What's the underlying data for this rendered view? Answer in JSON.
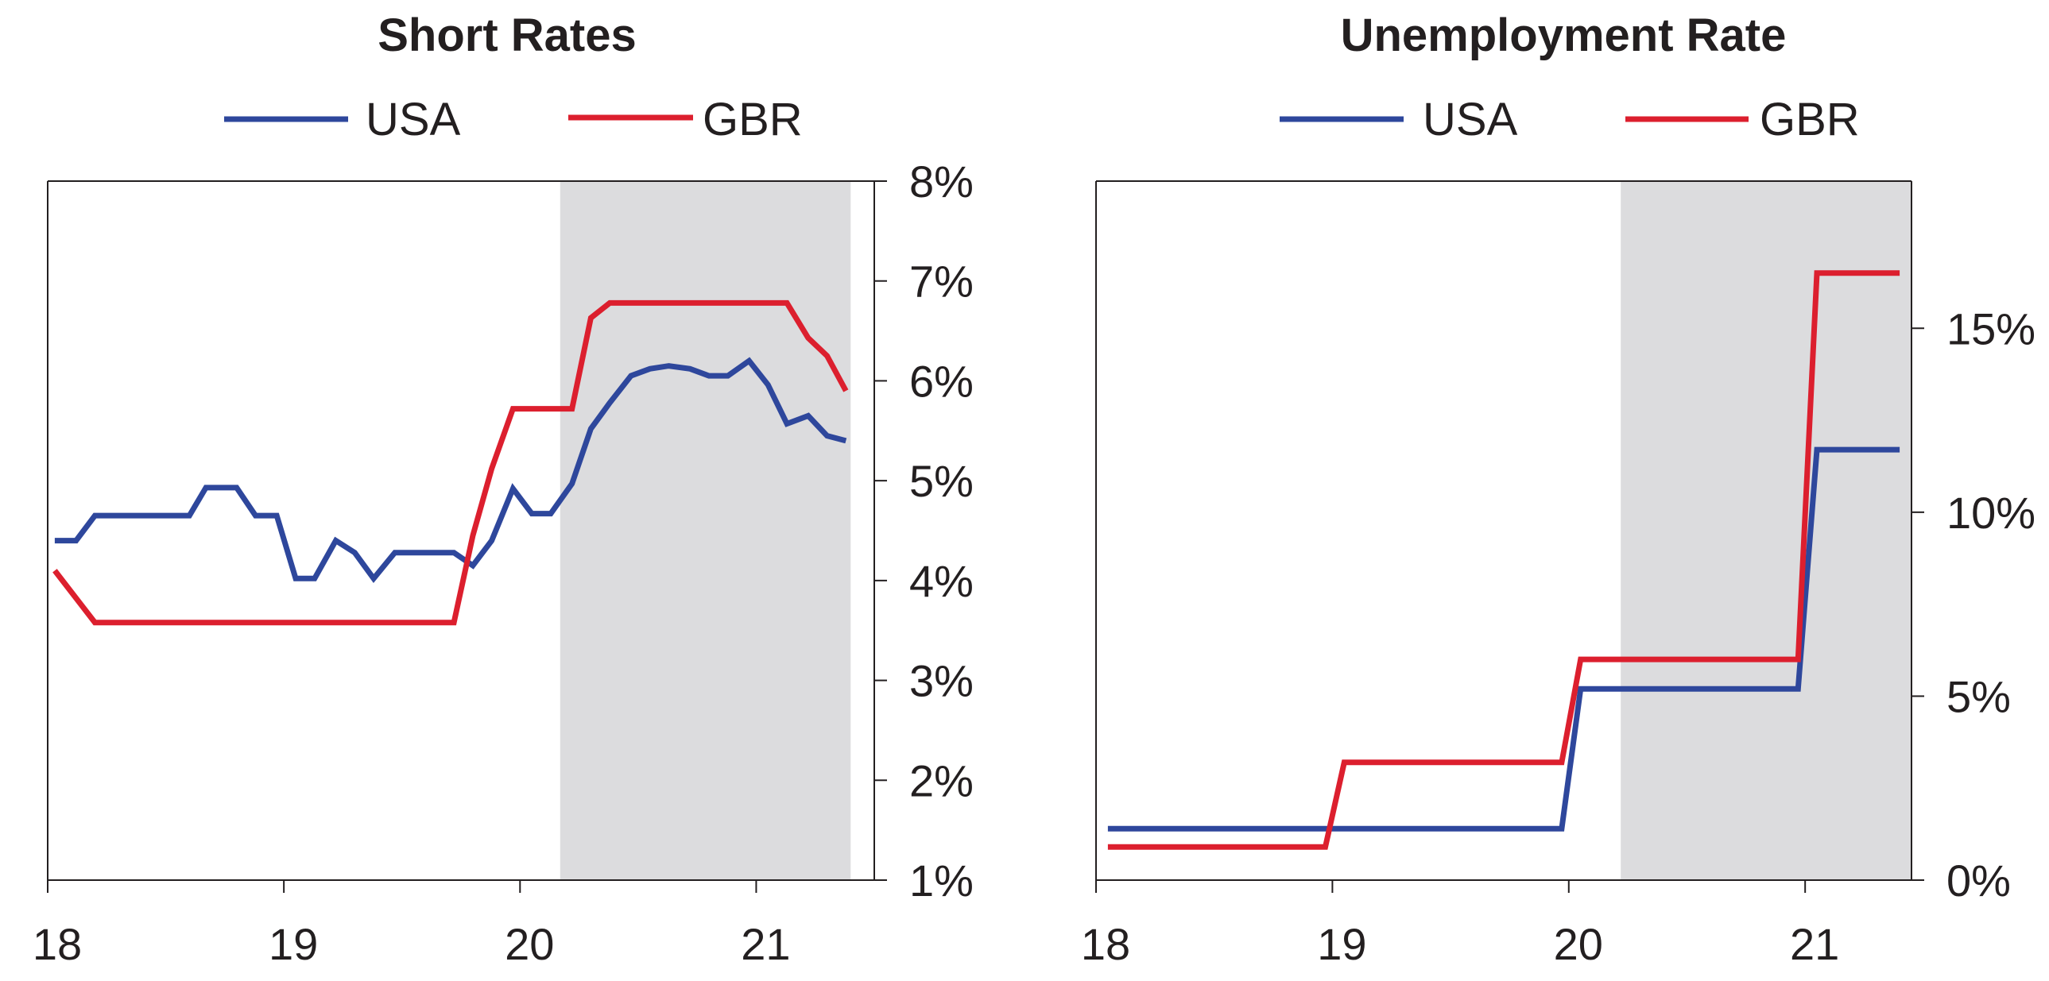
{
  "colors": {
    "usa": "#2e479c",
    "gbr": "#dc1f2e",
    "shade": "#dcdcde",
    "axis": "#231f20"
  },
  "chart_data": [
    {
      "type": "line",
      "title": "Short Rates",
      "legend": [
        "USA",
        "GBR"
      ],
      "legend_position": "top",
      "y_axis_side": "right",
      "x_ticks": [
        {
          "value": 18,
          "label": "18"
        },
        {
          "value": 19,
          "label": "19"
        },
        {
          "value": 20,
          "label": "20"
        },
        {
          "value": 21,
          "label": "21"
        }
      ],
      "y_ticks": [
        {
          "value": 1,
          "label": "1%"
        },
        {
          "value": 2,
          "label": "2%"
        },
        {
          "value": 3,
          "label": "3%"
        },
        {
          "value": 4,
          "label": "4%"
        },
        {
          "value": 5,
          "label": "5%"
        },
        {
          "value": 6,
          "label": "6%"
        },
        {
          "value": 7,
          "label": "7%"
        },
        {
          "value": 8,
          "label": "8%"
        }
      ],
      "xlim": [
        18,
        21.5
      ],
      "ylim": [
        1,
        8
      ],
      "shaded_x": [
        20.17,
        21.4
      ],
      "series": [
        {
          "name": "USA",
          "color_key": "usa",
          "x": [
            18.03,
            18.12,
            18.2,
            18.3,
            18.4,
            18.5,
            18.6,
            18.67,
            18.75,
            18.8,
            18.88,
            18.97,
            19.05,
            19.13,
            19.22,
            19.3,
            19.38,
            19.47,
            19.55,
            19.63,
            19.72,
            19.8,
            19.88,
            19.97,
            20.05,
            20.13,
            20.22,
            20.3,
            20.38,
            20.47,
            20.55,
            20.63,
            20.72,
            20.8,
            20.88,
            20.97,
            21.05,
            21.13,
            21.22,
            21.3,
            21.38
          ],
          "y": [
            4.4,
            4.4,
            4.65,
            4.65,
            4.65,
            4.65,
            4.65,
            4.93,
            4.93,
            4.93,
            4.65,
            4.65,
            4.02,
            4.02,
            4.4,
            4.28,
            4.02,
            4.28,
            4.28,
            4.28,
            4.28,
            4.15,
            4.4,
            4.92,
            4.67,
            4.67,
            4.97,
            5.52,
            5.78,
            6.05,
            6.12,
            6.15,
            6.12,
            6.05,
            6.05,
            6.2,
            5.96,
            5.57,
            5.65,
            5.45,
            5.4
          ]
        },
        {
          "name": "GBR",
          "color_key": "gbr",
          "x": [
            18.03,
            18.2,
            18.4,
            18.6,
            18.8,
            19.0,
            19.2,
            19.4,
            19.6,
            19.72,
            19.8,
            19.88,
            19.97,
            20.05,
            20.13,
            20.22,
            20.3,
            20.38,
            20.5,
            20.6,
            20.8,
            20.97,
            21.05,
            21.13,
            21.22,
            21.3,
            21.38
          ],
          "y": [
            4.1,
            3.58,
            3.58,
            3.58,
            3.58,
            3.58,
            3.58,
            3.58,
            3.58,
            3.58,
            4.45,
            5.12,
            5.72,
            5.72,
            5.72,
            5.72,
            6.63,
            6.78,
            6.78,
            6.78,
            6.78,
            6.78,
            6.78,
            6.78,
            6.43,
            6.25,
            5.9
          ]
        }
      ]
    },
    {
      "type": "line",
      "title": "Unemployment Rate",
      "legend": [
        "USA",
        "GBR"
      ],
      "legend_position": "top",
      "y_axis_side": "right",
      "x_ticks": [
        {
          "value": 18,
          "label": "18"
        },
        {
          "value": 19,
          "label": "19"
        },
        {
          "value": 20,
          "label": "20"
        },
        {
          "value": 21,
          "label": "21"
        }
      ],
      "y_ticks": [
        {
          "value": 0,
          "label": "0%"
        },
        {
          "value": 5,
          "label": "5%"
        },
        {
          "value": 10,
          "label": "10%"
        },
        {
          "value": 15,
          "label": "15%"
        }
      ],
      "xlim": [
        18,
        21.45
      ],
      "ylim": [
        0,
        19
      ],
      "shaded_x": [
        20.22,
        21.45
      ],
      "series": [
        {
          "name": "USA",
          "color_key": "usa",
          "x": [
            18.05,
            18.5,
            19.0,
            19.5,
            19.97,
            20.05,
            20.5,
            20.97,
            21.05,
            21.4
          ],
          "y": [
            1.4,
            1.4,
            1.4,
            1.4,
            1.4,
            5.2,
            5.2,
            5.2,
            11.7,
            11.7
          ]
        },
        {
          "name": "GBR",
          "color_key": "gbr",
          "x": [
            18.05,
            18.5,
            18.97,
            19.05,
            19.5,
            19.97,
            20.05,
            20.5,
            20.97,
            21.05,
            21.4
          ],
          "y": [
            0.9,
            0.9,
            0.9,
            3.2,
            3.2,
            3.2,
            6.0,
            6.0,
            6.0,
            16.5,
            16.5
          ]
        }
      ]
    }
  ]
}
